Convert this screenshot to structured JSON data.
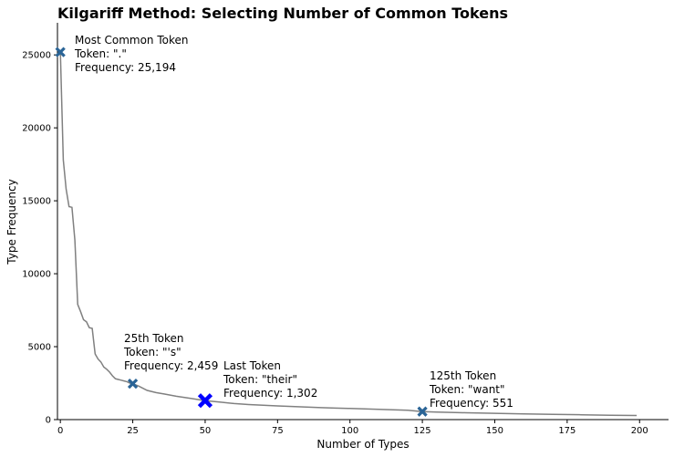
{
  "chart_data": {
    "type": "line",
    "title": "Kilgariff Method: Selecting Number of Common Tokens",
    "xlabel": "Number of Types",
    "ylabel": "Type Frequency",
    "xlim": [
      -1,
      210
    ],
    "ylim": [
      0,
      27200
    ],
    "xticks": [
      0,
      25,
      50,
      75,
      100,
      125,
      150,
      175,
      200
    ],
    "yticks": [
      0,
      5000,
      10000,
      15000,
      20000,
      25000
    ],
    "grid": false,
    "line_color": "#808080",
    "series": [
      {
        "x": [
          0,
          1,
          2,
          3,
          4,
          5,
          6,
          7,
          8,
          9,
          10,
          11,
          12,
          13,
          14,
          15,
          16,
          17,
          18,
          19,
          20,
          21,
          22,
          23,
          24,
          25,
          27,
          30,
          33,
          36,
          40,
          45,
          50,
          55,
          60,
          65,
          70,
          75,
          80,
          85,
          90,
          95,
          100,
          110,
          120,
          125,
          130,
          140,
          150,
          160,
          170,
          180,
          190,
          199
        ],
        "y": [
          25194,
          17800,
          15800,
          14600,
          14550,
          12300,
          7900,
          7400,
          6850,
          6700,
          6300,
          6250,
          4500,
          4150,
          3950,
          3600,
          3450,
          3250,
          3000,
          2800,
          2750,
          2700,
          2650,
          2600,
          2500,
          2459,
          2300,
          2000,
          1850,
          1750,
          1600,
          1450,
          1302,
          1200,
          1100,
          1030,
          980,
          940,
          900,
          860,
          820,
          790,
          760,
          700,
          640,
          551,
          520,
          470,
          430,
          390,
          360,
          330,
          300,
          280
        ]
      }
    ],
    "markers": [
      {
        "x": 0,
        "y": 25194,
        "color": "#2a6496",
        "size": "normal"
      },
      {
        "x": 25,
        "y": 2459,
        "color": "#2a6496",
        "size": "normal"
      },
      {
        "x": 50,
        "y": 1302,
        "color": "#0000ff",
        "size": "large"
      },
      {
        "x": 125,
        "y": 551,
        "color": "#2a6496",
        "size": "normal"
      }
    ],
    "annotations": [
      {
        "id": "most-common",
        "lines": [
          "Most Common Token",
          "Token: \".\"",
          "Frequency: 25,194"
        ]
      },
      {
        "id": "25th",
        "lines": [
          "25th Token",
          "Token: \"'s\"",
          "Frequency: 2,459"
        ]
      },
      {
        "id": "last",
        "lines": [
          "Last Token",
          "Token:  \"their\"",
          "Frequency:  1,302"
        ]
      },
      {
        "id": "125th",
        "lines": [
          "125th Token",
          "Token: \"want\"",
          "Frequency: 551"
        ]
      }
    ]
  }
}
